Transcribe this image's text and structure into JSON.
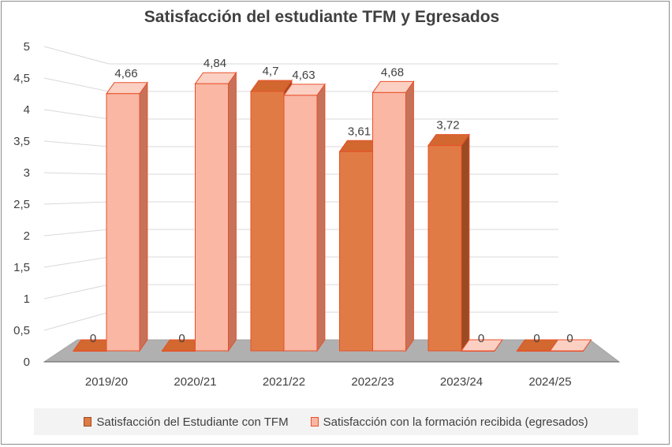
{
  "chart_data": {
    "type": "bar",
    "title": "Satisfacción del estudiante TFM y Egresados",
    "categories": [
      "2019/20",
      "2020/21",
      "2021/22",
      "2022/23",
      "2023/24",
      "2024/25"
    ],
    "series": [
      {
        "name": "Satisfacción del Estudiante con TFM",
        "values": [
          0,
          0,
          4.7,
          3.61,
          3.72,
          0
        ],
        "labels": [
          "0",
          "0",
          "4,7",
          "3,61",
          "3,72",
          "0"
        ]
      },
      {
        "name": "Satisfacción con la formación recibida (egresados)",
        "values": [
          4.66,
          4.84,
          4.63,
          4.68,
          0,
          0
        ],
        "labels": [
          "4,66",
          "4,84",
          "4,63",
          "4,68",
          "0",
          "0"
        ]
      }
    ],
    "ylim": [
      0,
      5
    ],
    "yticks": [
      "0",
      "0,5",
      "1",
      "1,5",
      "2",
      "2,5",
      "3",
      "3,5",
      "4",
      "4,5",
      "5"
    ],
    "grid": true,
    "legend_position": "bottom",
    "colors": {
      "series1_front": "#e07b45",
      "series1_side": "#9b4a21",
      "series1_top": "#d2672f",
      "series2_front": "#f9b7a4",
      "series2_side": "#c6725a",
      "series2_top": "#fbd0c3",
      "edge": "#e8502a",
      "floor": "#b0b0b0"
    }
  }
}
